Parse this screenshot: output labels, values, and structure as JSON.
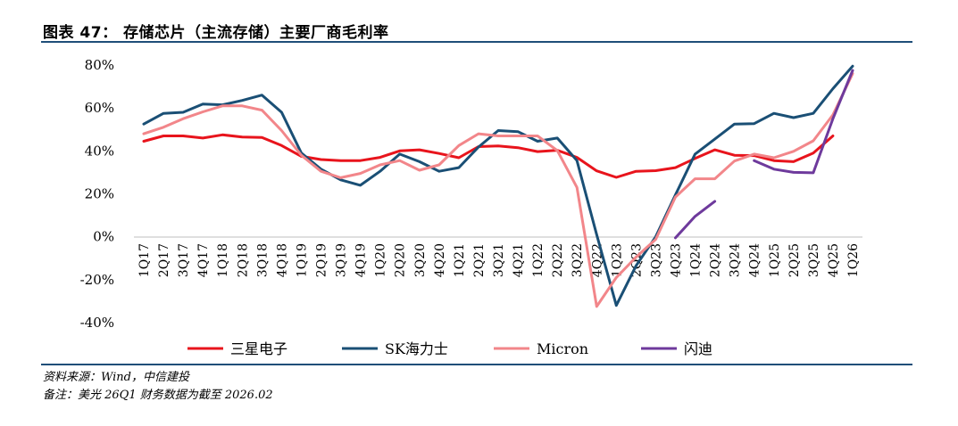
{
  "figure": {
    "title": "图表 47： 存储芯片（主流存储）主要厂商毛利率",
    "source": "资料来源：Wind，中信建投",
    "note": "备注：美光 26Q1 财务数据为截至 2026.02"
  },
  "chart_data": {
    "type": "line",
    "categories": [
      "1Q17",
      "2Q17",
      "3Q17",
      "4Q17",
      "1Q18",
      "2Q18",
      "3Q18",
      "4Q18",
      "1Q19",
      "2Q19",
      "3Q19",
      "4Q19",
      "1Q20",
      "2Q20",
      "3Q20",
      "4Q20",
      "1Q21",
      "2Q21",
      "3Q21",
      "4Q21",
      "1Q22",
      "2Q22",
      "3Q22",
      "4Q22",
      "1Q23",
      "2Q23",
      "3Q23",
      "4Q23",
      "1Q24",
      "2Q24",
      "3Q24",
      "4Q24",
      "1Q25",
      "2Q25",
      "3Q25",
      "4Q25",
      "1Q26"
    ],
    "ylim": [
      -40,
      80
    ],
    "yticks": [
      -40,
      -20,
      0,
      20,
      40,
      60,
      80
    ],
    "ytick_labels": [
      "-40%",
      "-20%",
      "0%",
      "20%",
      "40%",
      "60%",
      "80%"
    ],
    "legend_position": "bottom",
    "series": [
      {
        "name": "三星电子",
        "color": "#e8141c",
        "values": [
          44.5,
          47,
          47,
          46,
          47.5,
          46.5,
          46.3,
          42.5,
          37.5,
          36,
          35.5,
          35.5,
          37,
          40,
          40.5,
          38.8,
          36.8,
          42,
          42.3,
          41.5,
          39.7,
          40.3,
          37,
          30.7,
          27.7,
          30.5,
          30.8,
          32.2,
          36.5,
          40.5,
          38,
          37.8,
          35.5,
          35,
          39,
          47,
          null
        ]
      },
      {
        "name": "SK海力士",
        "color": "#1a4f75",
        "values": [
          52.5,
          57.5,
          58,
          61.8,
          61.5,
          63.5,
          66,
          58,
          39,
          31.5,
          26.5,
          24,
          30.5,
          38.5,
          35,
          30.5,
          32.2,
          41.8,
          49.5,
          49,
          44.5,
          46,
          35.5,
          1,
          -32,
          -13.5,
          0,
          19.5,
          38.5,
          45.5,
          52.5,
          52.7,
          57.5,
          55.5,
          57.5,
          69,
          79.5
        ]
      },
      {
        "name": "Micron",
        "color": "#f2868a",
        "values": [
          48,
          51,
          55,
          58.2,
          61,
          61,
          59,
          49.5,
          38,
          30.5,
          27.5,
          29.5,
          33.5,
          35.5,
          31,
          33.5,
          42.5,
          48,
          47,
          47,
          47,
          40.2,
          23,
          -32.5,
          -19,
          -9.5,
          -1.2,
          18.5,
          27,
          27,
          35.3,
          38.5,
          36.8,
          39.8,
          44.7,
          56.8,
          76
        ]
      },
      {
        "name": "闪迪",
        "color": "#6e3a9c",
        "values": [
          null,
          null,
          null,
          null,
          null,
          null,
          null,
          null,
          null,
          null,
          null,
          null,
          null,
          null,
          null,
          null,
          null,
          null,
          null,
          null,
          null,
          null,
          null,
          null,
          null,
          null,
          null,
          -0.5,
          9.5,
          16.5,
          null,
          35.5,
          31.5,
          30,
          29.8,
          55,
          77.5
        ]
      }
    ]
  }
}
